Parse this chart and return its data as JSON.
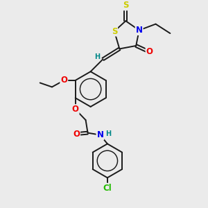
{
  "bg_color": "#ebebeb",
  "bond_color": "#1a1a1a",
  "bond_width": 1.4,
  "atom_colors": {
    "S": "#cccc00",
    "N": "#0000ee",
    "O": "#ee0000",
    "Cl": "#22bb00",
    "H_label": "#008888",
    "C": "#1a1a1a"
  },
  "font_size_atom": 8.5,
  "font_size_small": 7.0
}
